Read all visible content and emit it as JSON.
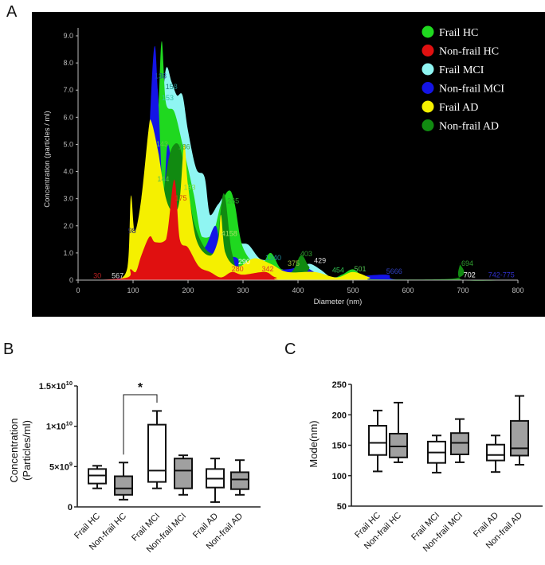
{
  "panel_labels": {
    "a": "A",
    "b": "B",
    "c": "C"
  },
  "chart_data": [
    {
      "type": "area",
      "panel": "A",
      "xlabel": "Diameter (nm)",
      "ylabel": "Concentration (particles / ml)",
      "xlim": [
        0,
        800
      ],
      "ylim": [
        0,
        9
      ],
      "xticks": [
        "0",
        "100",
        "200",
        "300",
        "400",
        "500",
        "600",
        "700",
        "800"
      ],
      "yticks": [
        "0",
        "1.0",
        "2.0",
        "3.0",
        "4.0",
        "5.0",
        "6.0",
        "7.0",
        "8.0",
        "9.0"
      ],
      "legend_position": "top-right",
      "series": [
        {
          "name": "Frail MCI",
          "color": "#8ff5f2",
          "points": [
            [
              60,
              0
            ],
            [
              90,
              0.2
            ],
            [
              110,
              1
            ],
            [
              130,
              4
            ],
            [
              140,
              6.1
            ],
            [
              150,
              6
            ],
            [
              160,
              7.8
            ],
            [
              170,
              7.3
            ],
            [
              180,
              6.8
            ],
            [
              190,
              6.8
            ],
            [
              200,
              5.5
            ],
            [
              215,
              4.1
            ],
            [
              230,
              3.8
            ],
            [
              240,
              2.4
            ],
            [
              255,
              2.8
            ],
            [
              270,
              3
            ],
            [
              290,
              1.5
            ],
            [
              310,
              1.3
            ],
            [
              330,
              0.8
            ],
            [
              350,
              0.7
            ],
            [
              370,
              0.4
            ],
            [
              400,
              0.4
            ],
            [
              420,
              0.6
            ],
            [
              440,
              0.4
            ],
            [
              460,
              0.1
            ],
            [
              480,
              0
            ],
            [
              800,
              0
            ]
          ]
        },
        {
          "name": "Frail HC",
          "color": "#1fd81f",
          "points": [
            [
              80,
              0
            ],
            [
              110,
              0.5
            ],
            [
              130,
              3
            ],
            [
              145,
              6
            ],
            [
              152,
              8.8
            ],
            [
              160,
              6.5
            ],
            [
              175,
              6.2
            ],
            [
              190,
              5
            ],
            [
              210,
              3.2
            ],
            [
              225,
              1.6
            ],
            [
              245,
              1.7
            ],
            [
              260,
              2.8
            ],
            [
              275,
              3.3
            ],
            [
              285,
              2.8
            ],
            [
              300,
              1.2
            ],
            [
              330,
              0.5
            ],
            [
              350,
              1
            ],
            [
              370,
              0.4
            ],
            [
              400,
              0.3
            ],
            [
              460,
              0.1
            ],
            [
              480,
              0.2
            ],
            [
              500,
              0.4
            ],
            [
              520,
              0.1
            ],
            [
              540,
              0
            ],
            [
              800,
              0
            ]
          ]
        },
        {
          "name": "Non-frail MCI",
          "color": "#1414e6",
          "points": [
            [
              60,
              0
            ],
            [
              95,
              0.3
            ],
            [
              110,
              1.5
            ],
            [
              125,
              4
            ],
            [
              138,
              8.5
            ],
            [
              145,
              7
            ],
            [
              155,
              3
            ],
            [
              163,
              5
            ],
            [
              175,
              3.5
            ],
            [
              190,
              1.8
            ],
            [
              210,
              1.5
            ],
            [
              230,
              1.2
            ],
            [
              250,
              2
            ],
            [
              262,
              1
            ],
            [
              290,
              0.8
            ],
            [
              300,
              0.3
            ],
            [
              380,
              0.4
            ],
            [
              410,
              0.5
            ],
            [
              440,
              0.2
            ],
            [
              480,
              0.1
            ],
            [
              560,
              0.2
            ],
            [
              590,
              0
            ],
            [
              800,
              0
            ]
          ]
        },
        {
          "name": "Non-frail AD",
          "color": "#118a11",
          "points": [
            [
              100,
              0
            ],
            [
              120,
              0.5
            ],
            [
              145,
              4.6
            ],
            [
              152,
              3
            ],
            [
              165,
              4.5
            ],
            [
              175,
              5
            ],
            [
              185,
              4.9
            ],
            [
              195,
              4
            ],
            [
              210,
              2.2
            ],
            [
              230,
              1.2
            ],
            [
              250,
              1
            ],
            [
              265,
              3.2
            ],
            [
              280,
              1
            ],
            [
              300,
              0.3
            ],
            [
              380,
              0.2
            ],
            [
              405,
              0.9
            ],
            [
              420,
              0.5
            ],
            [
              440,
              0.1
            ],
            [
              680,
              0.05
            ],
            [
              694,
              0.6
            ],
            [
              700,
              0
            ],
            [
              800,
              0
            ]
          ]
        },
        {
          "name": "Frail AD",
          "color": "#f5f000",
          "points": [
            [
              70,
              0
            ],
            [
              90,
              0.5
            ],
            [
              96,
              3.1
            ],
            [
              103,
              1.8
            ],
            [
              115,
              3
            ],
            [
              128,
              5.5
            ],
            [
              133,
              5.85
            ],
            [
              145,
              4.8
            ],
            [
              160,
              3
            ],
            [
              175,
              2.5
            ],
            [
              185,
              3
            ],
            [
              193,
              5
            ],
            [
              200,
              3.5
            ],
            [
              215,
              1.5
            ],
            [
              240,
              0.9
            ],
            [
              255,
              1.5
            ],
            [
              260,
              2.4
            ],
            [
              268,
              1
            ],
            [
              290,
              0.5
            ],
            [
              320,
              0.8
            ],
            [
              350,
              0.6
            ],
            [
              380,
              0.3
            ],
            [
              430,
              0.3
            ],
            [
              470,
              0.1
            ],
            [
              500,
              0.3
            ],
            [
              530,
              0.1
            ],
            [
              550,
              0
            ],
            [
              800,
              0
            ]
          ]
        },
        {
          "name": "Non-frail HC",
          "color": "#e01010",
          "points": [
            [
              30,
              0
            ],
            [
              90,
              0.1
            ],
            [
              95,
              0.4
            ],
            [
              105,
              0.3
            ],
            [
              115,
              0.9
            ],
            [
              130,
              1.6
            ],
            [
              140,
              1.4
            ],
            [
              160,
              1.5
            ],
            [
              175,
              3.7
            ],
            [
              185,
              1.5
            ],
            [
              200,
              1.2
            ],
            [
              220,
              0.5
            ],
            [
              240,
              0.3
            ],
            [
              260,
              0.1
            ],
            [
              280,
              0.3
            ],
            [
              300,
              0.2
            ],
            [
              340,
              0.3
            ],
            [
              360,
              0.1
            ],
            [
              400,
              0
            ],
            [
              800,
              0
            ]
          ]
        }
      ],
      "legend_order": [
        "Frail HC",
        "Non-frail HC",
        "Frail MCI",
        "Non-frail MCI",
        "Frail AD",
        "Non-frail AD"
      ],
      "peak_labels": [
        {
          "text": "30",
          "x": 35,
          "y": 0.05,
          "color": "#c02020"
        },
        {
          "text": "567",
          "x": 72,
          "y": 0.05,
          "color": "#dddddd"
        },
        {
          "text": "98",
          "x": 98,
          "y": 1.7,
          "color": "#202070"
        },
        {
          "text": "138",
          "x": 150,
          "y": 7.4,
          "color": "#2050a0"
        },
        {
          "text": "158",
          "x": 170,
          "y": 7.0,
          "color": "#208080"
        },
        {
          "text": "153",
          "x": 163,
          "y": 6.6,
          "color": "#30c0a0"
        },
        {
          "text": "143",
          "x": 153,
          "y": 4.9,
          "color": "#60d040"
        },
        {
          "text": "186",
          "x": 193,
          "y": 4.8,
          "color": "#40a040"
        },
        {
          "text": "144",
          "x": 155,
          "y": 3.6,
          "color": "#50c050"
        },
        {
          "text": "193",
          "x": 203,
          "y": 3.3,
          "color": "#80e040"
        },
        {
          "text": "175",
          "x": 187,
          "y": 2.9,
          "color": "#d04010"
        },
        {
          "text": "265",
          "x": 282,
          "y": 2.8,
          "color": "#30a030"
        },
        {
          "text": "4158",
          "x": 275,
          "y": 1.6,
          "color": "#a0e060"
        },
        {
          "text": "290",
          "x": 302,
          "y": 0.55,
          "color": "#ffffff"
        },
        {
          "text": "280",
          "x": 290,
          "y": 0.3,
          "color": "#e03030"
        },
        {
          "text": "342",
          "x": 345,
          "y": 0.3,
          "color": "#e03030"
        },
        {
          "text": "1340",
          "x": 355,
          "y": 0.7,
          "color": "#2090a0"
        },
        {
          "text": "375",
          "x": 392,
          "y": 0.5,
          "color": "#a0c040"
        },
        {
          "text": "403",
          "x": 415,
          "y": 0.85,
          "color": "#30a030"
        },
        {
          "text": "429",
          "x": 440,
          "y": 0.6,
          "color": "#dddddd"
        },
        {
          "text": "454",
          "x": 473,
          "y": 0.25,
          "color": "#30c050"
        },
        {
          "text": "501",
          "x": 513,
          "y": 0.3,
          "color": "#50c050"
        },
        {
          "text": "5666",
          "x": 575,
          "y": 0.2,
          "color": "#3040c0"
        },
        {
          "text": "694",
          "x": 708,
          "y": 0.5,
          "color": "#30a030"
        },
        {
          "text": "702",
          "x": 712,
          "y": 0.08,
          "color": "#ffffff"
        },
        {
          "text": "742-775",
          "x": 770,
          "y": 0.08,
          "color": "#3030d0"
        }
      ]
    },
    {
      "type": "box",
      "panel": "B",
      "ylabel": "Concentration",
      "ylabel2": "(Particles/ml)",
      "ylim": [
        0,
        15000000000.0
      ],
      "yticks": [
        {
          "value": 0,
          "base": "0",
          "exp": ""
        },
        {
          "value": 5000000000.0,
          "base": "5×10",
          "exp": "9"
        },
        {
          "value": 10000000000.0,
          "base": "1×10",
          "exp": "10"
        },
        {
          "value": 15000000000.0,
          "base": "1.5×10",
          "exp": "10"
        }
      ],
      "categories": [
        "Frail HC",
        "Non-frail HC",
        "Frail MCI",
        "Non-frail MCI",
        "Frail AD",
        "Non-frail AD"
      ],
      "fills": [
        "#ffffff",
        "#a0a0a0",
        "#ffffff",
        "#a0a0a0",
        "#ffffff",
        "#a0a0a0"
      ],
      "boxes": [
        {
          "min": 2300000000.0,
          "q1": 2900000000.0,
          "median": 3900000000.0,
          "q3": 4700000000.0,
          "max": 5100000000.0
        },
        {
          "min": 900000000.0,
          "q1": 1500000000.0,
          "median": 2300000000.0,
          "q3": 3800000000.0,
          "max": 5500000000.0
        },
        {
          "min": 2300000000.0,
          "q1": 3100000000.0,
          "median": 4500000000.0,
          "q3": 10200000000.0,
          "max": 11900000000.0
        },
        {
          "min": 1500000000.0,
          "q1": 2300000000.0,
          "median": 4500000000.0,
          "q3": 6000000000.0,
          "max": 6400000000.0
        },
        {
          "min": 600000000.0,
          "q1": 2400000000.0,
          "median": 3500000000.0,
          "q3": 4700000000.0,
          "max": 6000000000.0
        },
        {
          "min": 1500000000.0,
          "q1": 2200000000.0,
          "median": 3400000000.0,
          "q3": 4300000000.0,
          "max": 5800000000.0
        }
      ],
      "significance": {
        "from": 1,
        "to": 2,
        "label": "*"
      }
    },
    {
      "type": "box",
      "panel": "C",
      "ylabel": "Mode(nm)",
      "ylim": [
        50,
        250
      ],
      "yticks": [
        {
          "value": 50,
          "base": "50",
          "exp": ""
        },
        {
          "value": 100,
          "base": "100",
          "exp": ""
        },
        {
          "value": 150,
          "base": "150",
          "exp": ""
        },
        {
          "value": 200,
          "base": "200",
          "exp": ""
        },
        {
          "value": 250,
          "base": "250",
          "exp": ""
        }
      ],
      "categories": [
        "Frail HC",
        "Non-frail HC",
        "Frail MCI",
        "Non-frail MCI",
        "Frail AD",
        "Non-frail AD"
      ],
      "fills": [
        "#ffffff",
        "#a0a0a0",
        "#ffffff",
        "#a0a0a0",
        "#ffffff",
        "#a0a0a0"
      ],
      "boxes": [
        {
          "min": 107,
          "q1": 134,
          "median": 154,
          "q3": 182,
          "max": 207
        },
        {
          "min": 122,
          "q1": 130,
          "median": 148,
          "q3": 169,
          "max": 220
        },
        {
          "min": 105,
          "q1": 121,
          "median": 138,
          "q3": 156,
          "max": 166
        },
        {
          "min": 122,
          "q1": 135,
          "median": 154,
          "q3": 170,
          "max": 193
        },
        {
          "min": 106,
          "q1": 125,
          "median": 134,
          "q3": 151,
          "max": 166
        },
        {
          "min": 118,
          "q1": 133,
          "median": 145,
          "q3": 190,
          "max": 231
        }
      ]
    }
  ]
}
